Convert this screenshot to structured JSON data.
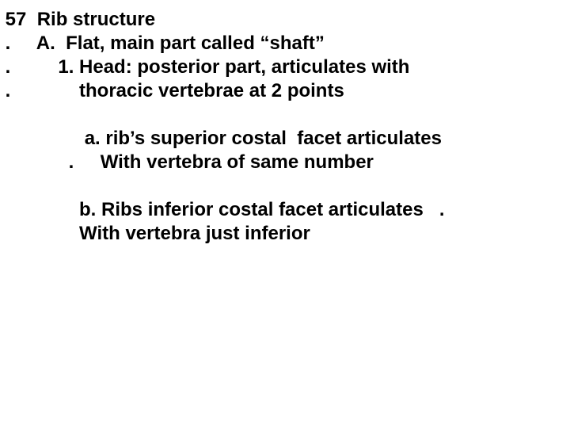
{
  "slide": {
    "background_color": "#ffffff",
    "text_color": "#000000",
    "font_family": "Arial",
    "font_weight": 700,
    "font_size_pt": 24,
    "lines": {
      "l1": " 57  Rib structure",
      "l2": " .     A.  Flat, main part called “shaft”",
      "l3": " .         1. Head: posterior part, articulates with",
      "l4": " .             thoracic vertebrae at 2 points",
      "l5": " ",
      "l6": "                a. rib’s superior costal  facet articulates",
      "l7": "             .     With vertebra of same number",
      "l8": " ",
      "l9": "               b. Ribs inferior costal facet articulates   .",
      "l10": "               With vertebra just inferior"
    }
  }
}
